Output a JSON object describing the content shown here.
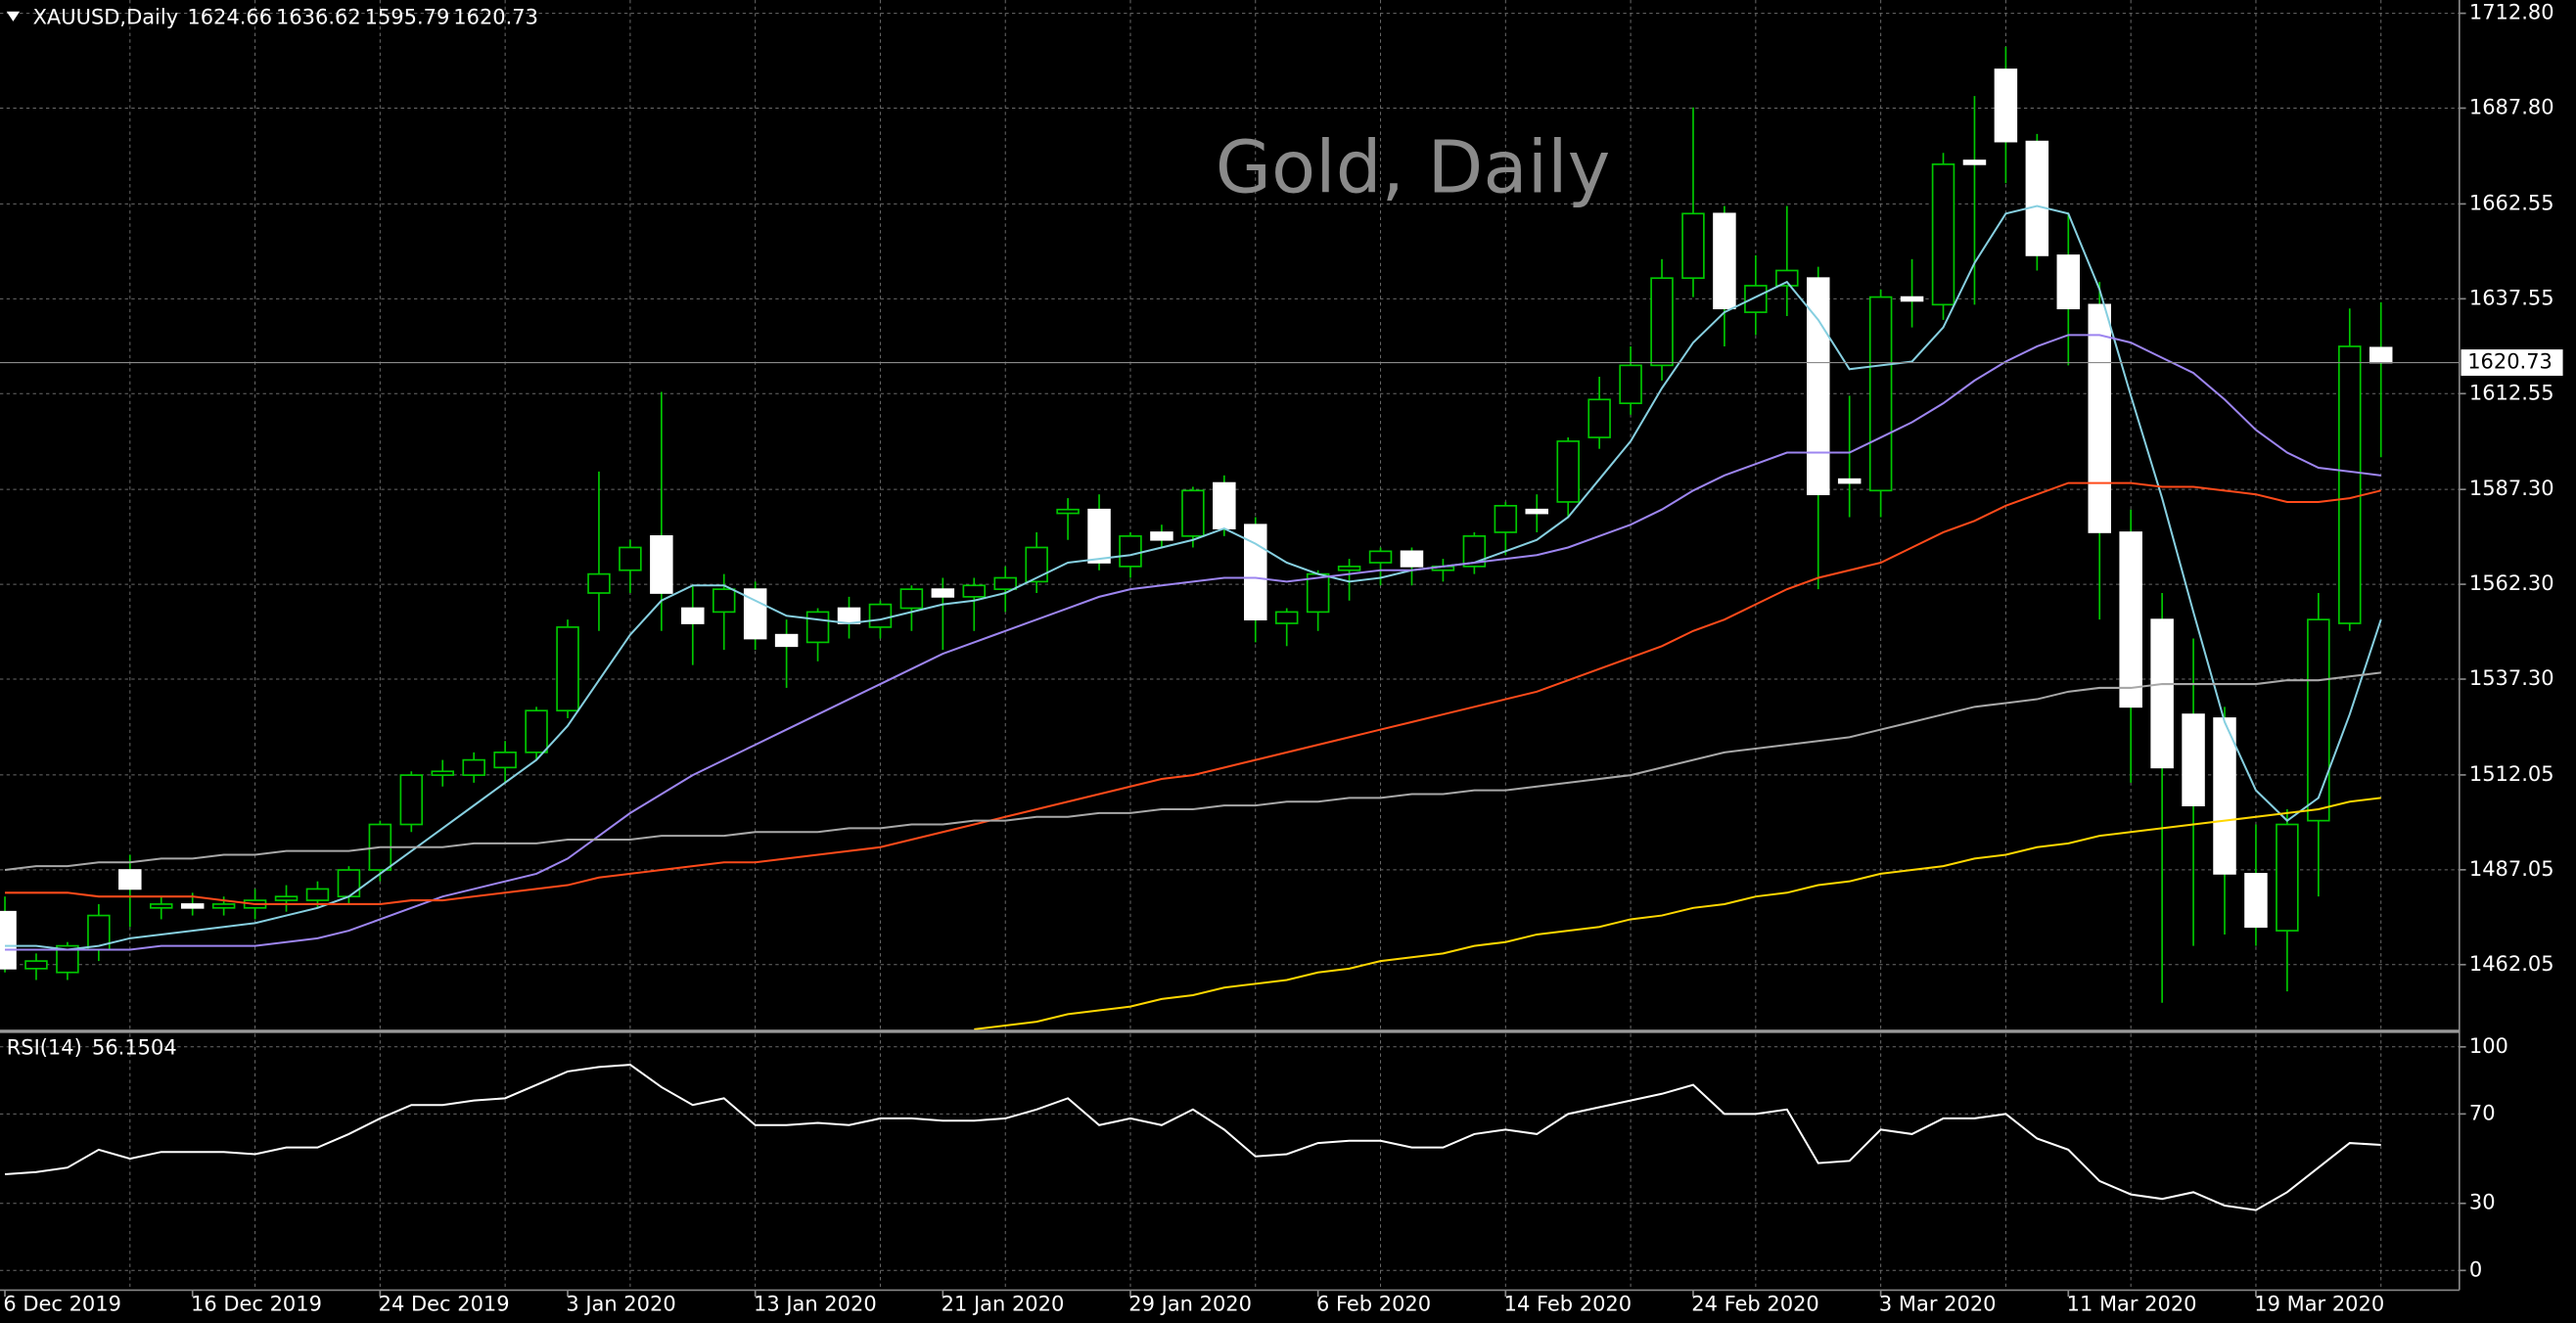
{
  "chart_data": [
    {
      "type": "candlestick",
      "symbol": "XAUUSD,Daily",
      "title": "Gold, Daily",
      "categories": [
        "6 Dec 2019",
        null,
        null,
        null,
        null,
        null,
        "16 Dec 2019",
        null,
        null,
        null,
        null,
        null,
        "24 Dec 2019",
        null,
        null,
        null,
        null,
        null,
        "3 Jan 2020",
        null,
        null,
        null,
        null,
        null,
        "13 Jan 2020",
        null,
        null,
        null,
        null,
        null,
        "21 Jan 2020",
        null,
        null,
        null,
        null,
        null,
        "29 Jan 2020",
        null,
        null,
        null,
        null,
        null,
        "6 Feb 2020",
        null,
        null,
        null,
        null,
        null,
        "14 Feb 2020",
        null,
        null,
        null,
        null,
        null,
        "24 Feb 2020",
        null,
        null,
        null,
        null,
        null,
        "3 Mar 2020",
        null,
        null,
        null,
        null,
        null,
        "11 Mar 2020",
        null,
        null,
        null,
        null,
        null,
        "19 Mar 2020",
        null,
        null,
        null,
        null
      ],
      "open": [
        1476,
        1461,
        1460,
        1466,
        1487,
        1477,
        1478,
        1477,
        1477,
        1479,
        1479,
        1480,
        1487,
        1499,
        1512,
        1512,
        1514,
        1518,
        1529,
        1560,
        1566,
        1575,
        1556,
        1555,
        1561,
        1549,
        1547,
        1556,
        1551,
        1556,
        1561,
        1559,
        1561,
        1563,
        1581,
        1582,
        1567,
        1576,
        1575,
        1589,
        1578,
        1552,
        1555,
        1566,
        1568,
        1571,
        1566,
        1567,
        1576,
        1582,
        1584,
        1601,
        1610,
        1620,
        1643,
        1660,
        1634,
        1641,
        1643,
        1590,
        1587,
        1638,
        1636,
        1674,
        1698,
        1679,
        1649,
        1636,
        1576,
        1553,
        1528,
        1527,
        1486,
        1471,
        1500,
        1552,
        1624.66
      ],
      "high": [
        1480,
        1465,
        1468,
        1478,
        1491,
        1480,
        1481,
        1480,
        1482,
        1483,
        1484,
        1488,
        1500,
        1513,
        1516,
        1518,
        1521,
        1530,
        1553,
        1592,
        1574,
        1613,
        1562,
        1565,
        1563,
        1553,
        1556,
        1559,
        1558,
        1562,
        1564,
        1564,
        1567,
        1576,
        1585,
        1586,
        1576,
        1578,
        1588,
        1591,
        1580,
        1556,
        1566,
        1569,
        1572,
        1572,
        1569,
        1576,
        1584,
        1586,
        1601,
        1617,
        1625,
        1648,
        1688,
        1662,
        1649,
        1662,
        1646,
        1612,
        1640,
        1648,
        1676,
        1691,
        1704,
        1681,
        1660,
        1642,
        1582,
        1560,
        1548,
        1530,
        1499,
        1503,
        1560,
        1635,
        1636.62
      ],
      "low": [
        1460,
        1458,
        1458,
        1463,
        1472,
        1474,
        1475,
        1475,
        1474,
        1476,
        1477,
        1478,
        1484,
        1497,
        1509,
        1510,
        1510,
        1516,
        1527,
        1550,
        1560,
        1550,
        1541,
        1545,
        1545,
        1535,
        1542,
        1548,
        1548,
        1550,
        1545,
        1550,
        1555,
        1560,
        1574,
        1566,
        1564,
        1572,
        1572,
        1575,
        1547,
        1546,
        1550,
        1558,
        1562,
        1562,
        1563,
        1565,
        1570,
        1576,
        1580,
        1598,
        1607,
        1616,
        1638,
        1625,
        1628,
        1633,
        1561,
        1580,
        1580,
        1630,
        1632,
        1636,
        1668,
        1645,
        1620,
        1553,
        1510,
        1452,
        1467,
        1470,
        1467,
        1455,
        1480,
        1550,
        1595.79
      ],
      "close": [
        1461,
        1463,
        1467,
        1475,
        1482,
        1478,
        1477,
        1478,
        1479,
        1480,
        1482,
        1487,
        1499,
        1512,
        1513,
        1516,
        1518,
        1529,
        1551,
        1565,
        1572,
        1560,
        1552,
        1561,
        1548,
        1546,
        1555,
        1552,
        1557,
        1561,
        1559,
        1562,
        1564,
        1572,
        1582,
        1568,
        1575,
        1574,
        1587,
        1577,
        1553,
        1555,
        1565,
        1567,
        1571,
        1567,
        1567,
        1575,
        1583,
        1581,
        1600,
        1611,
        1620,
        1643,
        1660,
        1635,
        1641,
        1645,
        1586,
        1589,
        1638,
        1637,
        1673,
        1673,
        1679,
        1649,
        1635,
        1576,
        1530,
        1514,
        1504,
        1486,
        1472,
        1499,
        1553,
        1625,
        1620.73
      ],
      "up_color": "#00c800",
      "down_color": "#ffffff",
      "wick_color": "#00c800",
      "series": [
        {
          "color": "#86cfe0",
          "values": [
            1467,
            1467,
            1466,
            1467,
            1469,
            1470,
            1471,
            1472,
            1473,
            1475,
            1477,
            1480,
            1486,
            1492,
            1498,
            1504,
            1510,
            1516,
            1525,
            1537,
            1549,
            1558,
            1562,
            1562,
            1558,
            1554,
            1553,
            1552,
            1553,
            1555,
            1557,
            1558,
            1560,
            1564,
            1568,
            1569,
            1570,
            1572,
            1574,
            1577,
            1573,
            1568,
            1565,
            1563,
            1564,
            1566,
            1567,
            1568,
            1571,
            1574,
            1580,
            1590,
            1600,
            1614,
            1626,
            1634,
            1638,
            1642,
            1632,
            1619,
            1620,
            1621,
            1630,
            1647,
            1660,
            1662,
            1660,
            1640,
            1612,
            1585,
            1555,
            1526,
            1508,
            1500,
            1506,
            1528,
            1553
          ]
        },
        {
          "color": "#9d85f0",
          "values": [
            1466,
            1466,
            1466,
            1466,
            1466,
            1467,
            1467,
            1467,
            1467,
            1468,
            1469,
            1471,
            1474,
            1477,
            1480,
            1482,
            1484,
            1486,
            1490,
            1496,
            1502,
            1507,
            1512,
            1516,
            1520,
            1524,
            1528,
            1532,
            1536,
            1540,
            1544,
            1547,
            1550,
            1553,
            1556,
            1559,
            1561,
            1562,
            1563,
            1564,
            1564,
            1563,
            1564,
            1565,
            1566,
            1566,
            1567,
            1568,
            1569,
            1570,
            1572,
            1575,
            1578,
            1582,
            1587,
            1591,
            1594,
            1597,
            1597,
            1597,
            1601,
            1605,
            1610,
            1616,
            1621,
            1625,
            1628,
            1628,
            1626,
            1622,
            1618,
            1611,
            1603,
            1597,
            1593,
            1592,
            1591
          ]
        },
        {
          "color": "#ff4a1a",
          "values": [
            1481,
            1481,
            1481,
            1480,
            1480,
            1480,
            1480,
            1479,
            1478,
            1478,
            1478,
            1478,
            1478,
            1479,
            1479,
            1480,
            1481,
            1482,
            1483,
            1485,
            1486,
            1487,
            1488,
            1489,
            1489,
            1490,
            1491,
            1492,
            1493,
            1495,
            1497,
            1499,
            1501,
            1503,
            1505,
            1507,
            1509,
            1511,
            1512,
            1514,
            1516,
            1518,
            1520,
            1522,
            1524,
            1526,
            1528,
            1530,
            1532,
            1534,
            1537,
            1540,
            1543,
            1546,
            1550,
            1553,
            1557,
            1561,
            1564,
            1566,
            1568,
            1572,
            1576,
            1579,
            1583,
            1586,
            1589,
            1589,
            1589,
            1588,
            1588,
            1587,
            1586,
            1584,
            1584,
            1585,
            1587
          ]
        },
        {
          "color": "#a8a8a8",
          "values": [
            1487,
            1488,
            1488,
            1489,
            1489,
            1490,
            1490,
            1491,
            1491,
            1492,
            1492,
            1492,
            1493,
            1493,
            1493,
            1494,
            1494,
            1494,
            1495,
            1495,
            1495,
            1496,
            1496,
            1496,
            1497,
            1497,
            1497,
            1498,
            1498,
            1499,
            1499,
            1500,
            1500,
            1501,
            1501,
            1502,
            1502,
            1503,
            1503,
            1504,
            1504,
            1505,
            1505,
            1506,
            1506,
            1507,
            1507,
            1508,
            1508,
            1509,
            1510,
            1511,
            1512,
            1514,
            1516,
            1518,
            1519,
            1520,
            1521,
            1522,
            1524,
            1526,
            1528,
            1530,
            1531,
            1532,
            1534,
            1535,
            1535,
            1536,
            1536,
            1536,
            1536,
            1537,
            1537,
            1538,
            1539
          ]
        },
        {
          "color": "#ffd700",
          "values": [
            null,
            null,
            null,
            null,
            null,
            null,
            null,
            null,
            null,
            null,
            null,
            null,
            null,
            null,
            null,
            null,
            null,
            null,
            null,
            null,
            null,
            null,
            null,
            null,
            null,
            null,
            null,
            null,
            null,
            null,
            null,
            1445,
            1446,
            1447,
            1449,
            1450,
            1451,
            1453,
            1454,
            1456,
            1457,
            1458,
            1460,
            1461,
            1463,
            1464,
            1465,
            1467,
            1468,
            1470,
            1471,
            1472,
            1474,
            1475,
            1477,
            1478,
            1480,
            1481,
            1483,
            1484,
            1486,
            1487,
            1488,
            1490,
            1491,
            1493,
            1494,
            1496,
            1497,
            1498,
            1499,
            1500,
            1501,
            1502,
            1503,
            1505,
            1506
          ]
        }
      ],
      "ylim": [
        1444.7,
        1716.3
      ],
      "yticks": [
        {
          "value": 1712.8,
          "label": "1712.80"
        },
        {
          "value": 1687.8,
          "label": "1687.80"
        },
        1662.55,
        1637.55,
        1612.55,
        {
          "value": 1587.3,
          "label": "1587.30"
        },
        {
          "value": 1562.3,
          "label": "1562.30"
        },
        {
          "value": 1537.3,
          "label": "1537.30"
        },
        1512.05,
        1487.05,
        1462.05
      ],
      "grid": true
    },
    {
      "type": "line",
      "title": "RSI(14)",
      "series": [
        {
          "color": "#ffffff",
          "values": [
            43,
            44,
            46,
            54,
            50,
            53,
            53,
            53,
            52,
            55,
            55,
            61,
            68,
            74,
            74,
            76,
            77,
            83,
            89,
            91,
            92,
            82,
            74,
            77,
            65,
            65,
            66,
            65,
            68,
            68,
            67,
            67,
            68,
            72,
            77,
            65,
            68,
            65,
            72,
            63,
            51,
            52,
            57,
            58,
            58,
            55,
            55,
            61,
            63,
            61,
            70,
            73,
            76,
            79,
            83,
            70,
            70,
            72,
            48,
            49,
            63,
            61,
            68,
            68,
            70,
            59,
            54,
            40,
            34,
            32,
            35,
            29,
            27,
            35,
            46,
            57,
            56.1504
          ]
        }
      ],
      "ylim": [
        -8.8,
        106.6
      ],
      "yticks": [
        100,
        70,
        30,
        0
      ],
      "grid": true
    }
  ]
}
